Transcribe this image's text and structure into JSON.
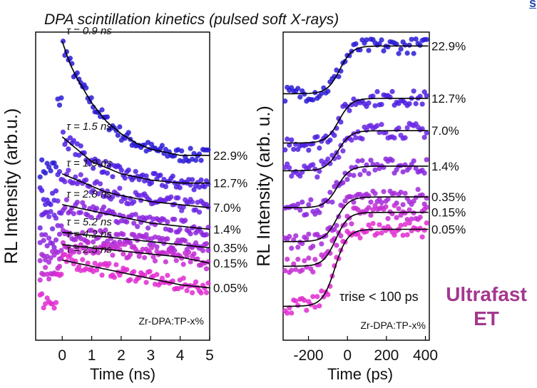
{
  "title": "DPA scintillation kinetics (pulsed soft X-rays)",
  "corner_mark": "s",
  "ultrafast_label": [
    "Ultrafast",
    "ET"
  ],
  "chart_data": [
    {
      "type": "scatter",
      "xlabel": "Time (ns)",
      "ylabel": "RL Intensity (arb.u.)",
      "xlim": [
        -0.9,
        5
      ],
      "xticks": [
        "0",
        "1",
        "2",
        "3",
        "4",
        "5"
      ],
      "sample_label": "Zr-DPA:TP-x%",
      "series": [
        {
          "name": "22.9%",
          "tau": "τ = 0.9 ns",
          "color": "#2a1bd6",
          "points": [
            [
              0.0,
              0.97
            ],
            [
              0.25,
              0.9
            ],
            [
              0.5,
              0.85
            ],
            [
              1.0,
              0.77
            ],
            [
              1.5,
              0.71
            ],
            [
              2.0,
              0.67
            ],
            [
              2.5,
              0.64
            ],
            [
              3.0,
              0.62
            ],
            [
              3.5,
              0.61
            ],
            [
              4.0,
              0.6
            ],
            [
              4.5,
              0.6
            ],
            [
              5.0,
              0.6
            ]
          ]
        },
        {
          "name": "12.7%",
          "tau": "τ = 1.5 ns",
          "color": "#4c1ee0",
          "points": [
            [
              0.0,
              0.66
            ],
            [
              0.5,
              0.62
            ],
            [
              1.0,
              0.58
            ],
            [
              1.5,
              0.56
            ],
            [
              2.0,
              0.54
            ],
            [
              3.0,
              0.52
            ],
            [
              4.0,
              0.51
            ],
            [
              5.0,
              0.51
            ]
          ]
        },
        {
          "name": "7.0%",
          "tau": "τ = 1.9 ns",
          "color": "#6a26e4",
          "points": [
            [
              0.0,
              0.54
            ],
            [
              0.5,
              0.52
            ],
            [
              1.0,
              0.5
            ],
            [
              1.5,
              0.48
            ],
            [
              2.0,
              0.47
            ],
            [
              3.0,
              0.45
            ],
            [
              4.0,
              0.44
            ],
            [
              5.0,
              0.43
            ]
          ]
        },
        {
          "name": "1.4%",
          "tau": "τ = 2.8 ns",
          "color": "#8a26de",
          "points": [
            [
              0.0,
              0.44
            ],
            [
              0.5,
              0.43
            ],
            [
              1.0,
              0.42
            ],
            [
              2.0,
              0.4
            ],
            [
              3.0,
              0.38
            ],
            [
              4.0,
              0.37
            ],
            [
              5.0,
              0.36
            ]
          ]
        },
        {
          "name": "0.35%",
          "tau": "τ = 5.2 ns",
          "color": "#a52ad8",
          "points": [
            [
              0.0,
              0.35
            ],
            [
              1.0,
              0.34
            ],
            [
              2.0,
              0.33
            ],
            [
              3.0,
              0.32
            ],
            [
              4.0,
              0.31
            ],
            [
              5.0,
              0.3
            ]
          ]
        },
        {
          "name": "0.15%",
          "tau": "τ = 4.2 ns",
          "color": "#c42cd2",
          "points": [
            [
              0.0,
              0.31
            ],
            [
              1.0,
              0.3
            ],
            [
              2.0,
              0.29
            ],
            [
              3.0,
              0.28
            ],
            [
              4.0,
              0.27
            ],
            [
              5.0,
              0.25
            ]
          ]
        },
        {
          "name": "0.05%",
          "tau": "τ = 2.5 ns",
          "color": "#e12cd0",
          "points": [
            [
              0.0,
              0.26
            ],
            [
              1.0,
              0.24
            ],
            [
              2.0,
              0.22
            ],
            [
              3.0,
              0.2
            ],
            [
              4.0,
              0.18
            ],
            [
              5.0,
              0.17
            ]
          ]
        }
      ]
    },
    {
      "type": "scatter",
      "xlabel": "Time (ps)",
      "ylabel": "RL Intensity (arb. u.)",
      "xlim": [
        -330,
        420
      ],
      "xticks": [
        "-200",
        "0",
        "200",
        "400"
      ],
      "sample_label": "Zr-DPA:TP-x%",
      "annotation": "τrise < 100 ps",
      "series": [
        {
          "name": "22.9%",
          "color": "#2a1bd6",
          "low": 0.8,
          "high": 0.955
        },
        {
          "name": "12.7%",
          "color": "#4c1ee0",
          "low": 0.64,
          "high": 0.785
        },
        {
          "name": "7.0%",
          "color": "#6a26e4",
          "low": 0.55,
          "high": 0.68
        },
        {
          "name": "1.4%",
          "color": "#8a26de",
          "low": 0.43,
          "high": 0.565
        },
        {
          "name": "0.35%",
          "color": "#a52ad8",
          "low": 0.32,
          "high": 0.465
        },
        {
          "name": "0.15%",
          "color": "#c42cd2",
          "low": 0.24,
          "high": 0.415
        },
        {
          "name": "0.05%",
          "color": "#e12cd0",
          "low": 0.11,
          "high": 0.36
        }
      ]
    }
  ]
}
